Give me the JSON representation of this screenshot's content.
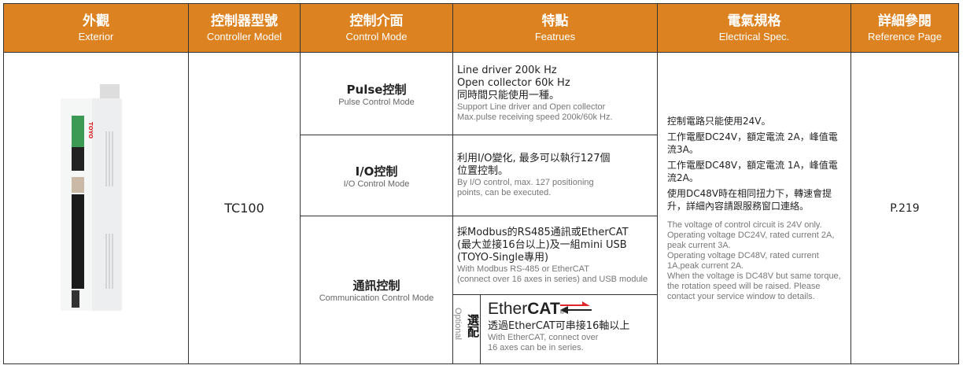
{
  "headers": [
    {
      "zh": "外觀",
      "en": "Exterior"
    },
    {
      "zh": "控制器型號",
      "en": "Controller Model"
    },
    {
      "zh": "控制介面",
      "en": "Control Mode"
    },
    {
      "zh": "特點",
      "en": "Featrues"
    },
    {
      "zh": "電氣規格",
      "en": "Electrical Spec."
    },
    {
      "zh": "詳細參閱",
      "en": "Reference Page"
    }
  ],
  "model": "TC100",
  "device_logo": "TOYO",
  "modes": [
    {
      "zh": "Pulse控制",
      "en": "Pulse Control Mode"
    },
    {
      "zh": "I/O控制",
      "en": "I/O Control Mode"
    },
    {
      "zh": "通訊控制",
      "en": "Communication Control Mode"
    }
  ],
  "features": [
    {
      "zh": [
        "Line driver  200k Hz",
        "Open collector 60k Hz",
        "同時間只能使用一種。"
      ],
      "en": [
        "Support Line driver and Open collector",
        "Max.pulse receiving speed 200k/60k Hz."
      ]
    },
    {
      "zh": [
        "利用I/O變化, 最多可以執行127個",
        "位置控制。"
      ],
      "en": [
        "By I/O control, max. 127 positioning",
        "points, can be executed."
      ]
    },
    {
      "zh": [
        "採Modbus的RS485通訊或EtherCAT",
        "(最大並接16台以上)及一組mini USB",
        "(TOYO-Single專用)"
      ],
      "en": [
        " With Modbus RS-485 or EtherCAT",
        "(connect over 16 axes in series) and USB module"
      ]
    }
  ],
  "optional": {
    "en": "Optional",
    "zh": "選配",
    "logo": "EtherCAT",
    "zh_text": "透過EtherCAT可串接16軸以上",
    "en_text": [
      "With EtherCAT,  connect over",
      "16 axes can be in series."
    ]
  },
  "electrical": {
    "zh": [
      "控制電路只能使用24V。",
      "工作電壓DC24V，額定電流 2A，峰值電流3A。",
      "工作電壓DC48V，額定電流 1A，峰值電流2A。",
      "使用DC48V時在相同扭力下，轉速會提升，詳細內容請跟服務窗口連絡。"
    ],
    "en": [
      "The voltage of control circuit is 24V only.",
      "Operating voltage DC24V, rated current 2A, peak current 3A.",
      "Operating voltage DC48V, rated current 1A,peak current 2A.",
      "When the voltage is DC48V but same torque, the rotation speed will be raised. Please contact your service window to details."
    ]
  },
  "reference": "P.219",
  "colors": {
    "header": "#dc8220",
    "ethercat_red": "#e0262b"
  }
}
